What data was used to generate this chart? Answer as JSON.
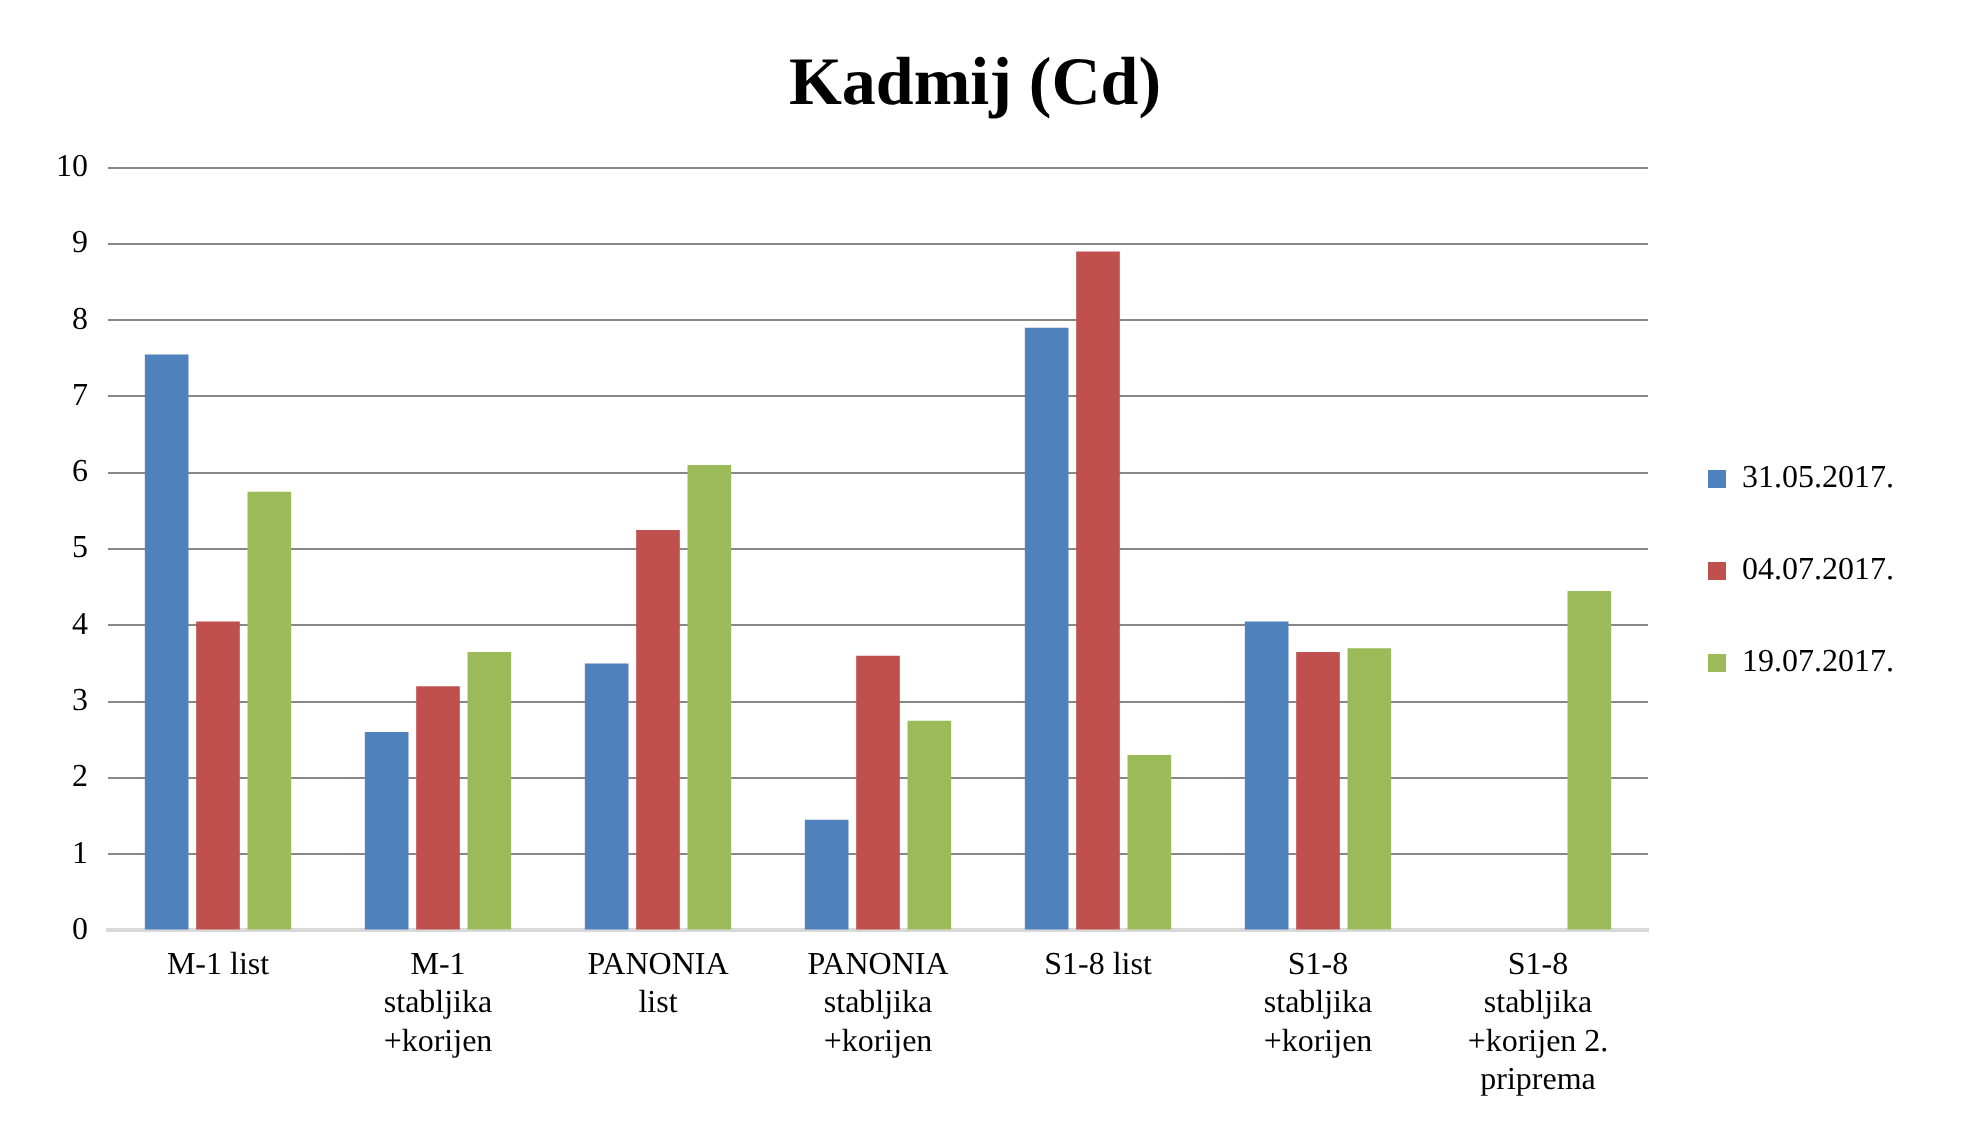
{
  "chart_data": {
    "type": "bar",
    "title": "Kadmij (Cd)",
    "categories": [
      "M-1 list",
      "M-1 stabljika +korijen",
      "PANONIA list",
      "PANONIA stabljika +korijen",
      "S1-8 list",
      "S1-8 stabljika +korijen",
      "S1-8 stabljika +korijen 2. priprema"
    ],
    "series": [
      {
        "name": "31.05.2017.",
        "color": "#4f81bd",
        "values": [
          7.55,
          2.6,
          3.5,
          1.45,
          7.9,
          4.05,
          null
        ]
      },
      {
        "name": "04.07.2017.",
        "color": "#c0504d",
        "values": [
          4.05,
          3.2,
          5.25,
          3.6,
          8.9,
          3.65,
          null
        ]
      },
      {
        "name": "19.07.2017.",
        "color": "#9bbb59",
        "values": [
          5.75,
          3.65,
          6.1,
          2.75,
          2.3,
          3.7,
          4.45
        ]
      }
    ],
    "ylim": [
      0,
      10
    ],
    "yticks": [
      0,
      1,
      2,
      3,
      4,
      5,
      6,
      7,
      8,
      9,
      10
    ],
    "grid": "y",
    "legend": "right"
  }
}
